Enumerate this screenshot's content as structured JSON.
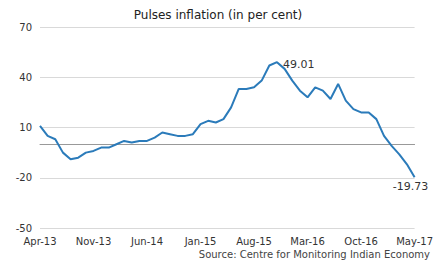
{
  "chart_data": {
    "type": "line",
    "title": "Pulses inflation (in per cent)",
    "source": "Source: Centre for Monitoring Indian Economy",
    "categories": [
      "Apr-13",
      null,
      null,
      null,
      null,
      null,
      null,
      "Nov-13",
      null,
      null,
      null,
      null,
      null,
      null,
      "Jun-14",
      null,
      null,
      null,
      null,
      null,
      null,
      "Jan-15",
      null,
      null,
      null,
      null,
      null,
      null,
      "Aug-15",
      null,
      null,
      null,
      null,
      null,
      null,
      "Mar-16",
      null,
      null,
      null,
      null,
      null,
      null,
      "Oct-16",
      null,
      null,
      null,
      null,
      null,
      null,
      "May-17"
    ],
    "values": [
      11,
      5,
      3,
      -5,
      -9,
      -8,
      -5,
      -4,
      -2,
      -2,
      0,
      2,
      1,
      2,
      2,
      4,
      7,
      6,
      5,
      5,
      6,
      12,
      14,
      13,
      15,
      22,
      33,
      33,
      34,
      38,
      47,
      49.01,
      45,
      38,
      32,
      28,
      34,
      32,
      27,
      36,
      26,
      21,
      19,
      19,
      15,
      5,
      -1,
      -6,
      -12,
      -19.73
    ],
    "annotations": [
      "49.01",
      "-19.73"
    ],
    "color": "#2b7bba",
    "ylim": [
      -50,
      70
    ],
    "yticks": [
      -50,
      -20,
      10,
      40,
      70
    ],
    "grid": true
  }
}
